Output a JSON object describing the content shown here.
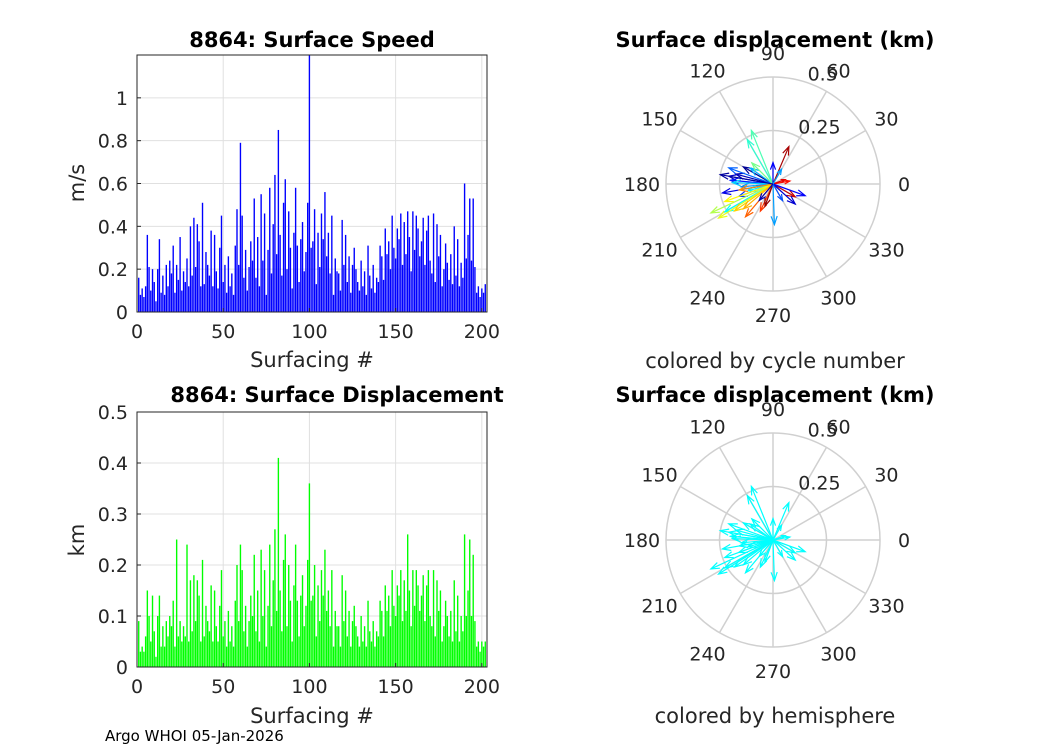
{
  "footer": "Argo WHOI 05-Jan-2026",
  "chart_data": [
    {
      "id": "speed",
      "type": "bar",
      "title": "8864: Surface Speed",
      "xlabel": "Surfacing #",
      "ylabel": "m/s",
      "xlim": [
        0,
        203
      ],
      "ylim": [
        0,
        1.2
      ],
      "xticks": [
        0,
        50,
        100,
        150,
        200
      ],
      "yticks": [
        0,
        0.2,
        0.4,
        0.6,
        0.8,
        1
      ],
      "ytick_labels": [
        "0",
        "0.2",
        "0.4",
        "0.6",
        "0.8",
        "1"
      ],
      "grid": true,
      "color": "#0000ff",
      "x": [
        1,
        2,
        3,
        4,
        5,
        6,
        7,
        8,
        9,
        10,
        11,
        12,
        13,
        14,
        15,
        16,
        17,
        18,
        19,
        20,
        21,
        22,
        23,
        24,
        25,
        26,
        27,
        28,
        29,
        30,
        31,
        32,
        33,
        34,
        35,
        36,
        37,
        38,
        39,
        40,
        41,
        42,
        43,
        44,
        45,
        46,
        47,
        48,
        49,
        50,
        51,
        52,
        53,
        54,
        55,
        56,
        57,
        58,
        59,
        60,
        61,
        62,
        63,
        64,
        65,
        66,
        67,
        68,
        69,
        70,
        71,
        72,
        73,
        74,
        75,
        76,
        77,
        78,
        79,
        80,
        81,
        82,
        83,
        84,
        85,
        86,
        87,
        88,
        89,
        90,
        91,
        92,
        93,
        94,
        95,
        96,
        97,
        98,
        99,
        100,
        101,
        102,
        103,
        104,
        105,
        106,
        107,
        108,
        109,
        110,
        111,
        112,
        113,
        114,
        115,
        116,
        117,
        118,
        119,
        120,
        121,
        122,
        123,
        124,
        125,
        126,
        127,
        128,
        129,
        130,
        131,
        132,
        133,
        134,
        135,
        136,
        137,
        138,
        139,
        140,
        141,
        142,
        143,
        144,
        145,
        146,
        147,
        148,
        149,
        150,
        151,
        152,
        153,
        154,
        155,
        156,
        157,
        158,
        159,
        160,
        161,
        162,
        163,
        164,
        165,
        166,
        167,
        168,
        169,
        170,
        171,
        172,
        173,
        174,
        175,
        176,
        177,
        178,
        179,
        180,
        181,
        182,
        183,
        184,
        185,
        186,
        187,
        188,
        189,
        190,
        191,
        192,
        193,
        194,
        195,
        196,
        197,
        198,
        199,
        200,
        201,
        202
      ],
      "values": [
        0.16,
        0.08,
        0.11,
        0.07,
        0.12,
        0.36,
        0.21,
        0.1,
        0.2,
        0.14,
        0.05,
        0.2,
        0.34,
        0.09,
        0.17,
        0.08,
        0.22,
        0.12,
        0.24,
        0.18,
        0.31,
        0.09,
        0.22,
        0.15,
        0.35,
        0.1,
        0.19,
        0.14,
        0.25,
        0.12,
        0.4,
        0.17,
        0.44,
        0.21,
        0.41,
        0.33,
        0.12,
        0.51,
        0.13,
        0.28,
        0.22,
        0.17,
        0.38,
        0.12,
        0.36,
        0.19,
        0.11,
        0.3,
        0.45,
        0.14,
        0.22,
        0.09,
        0.26,
        0.12,
        0.18,
        0.08,
        0.31,
        0.48,
        0.22,
        0.79,
        0.45,
        0.16,
        0.29,
        0.1,
        0.21,
        0.33,
        0.24,
        0.53,
        0.16,
        0.35,
        0.12,
        0.55,
        0.24,
        0.46,
        0.08,
        0.29,
        0.58,
        0.18,
        0.41,
        0.64,
        0.27,
        0.85,
        0.36,
        0.17,
        0.51,
        0.62,
        0.2,
        0.47,
        0.3,
        0.11,
        0.37,
        0.58,
        0.31,
        0.14,
        0.34,
        0.42,
        0.19,
        0.28,
        0.51,
        1.2,
        0.3,
        0.33,
        0.48,
        0.13,
        0.37,
        0.21,
        0.46,
        0.34,
        0.56,
        0.26,
        0.37,
        0.18,
        0.45,
        0.08,
        0.25,
        0.19,
        0.18,
        0.1,
        0.43,
        0.22,
        0.36,
        0.14,
        0.26,
        0.09,
        0.22,
        0.3,
        0.2,
        0.14,
        0.1,
        0.24,
        0.12,
        0.19,
        0.08,
        0.31,
        0.17,
        0.11,
        0.22,
        0.09,
        0.16,
        0.14,
        0.31,
        0.26,
        0.15,
        0.39,
        0.27,
        0.33,
        0.2,
        0.45,
        0.3,
        0.25,
        0.39,
        0.34,
        0.46,
        0.22,
        0.42,
        0.27,
        0.47,
        0.35,
        0.19,
        0.47,
        0.29,
        0.45,
        0.39,
        0.26,
        0.33,
        0.44,
        0.22,
        0.38,
        0.45,
        0.24,
        0.18,
        0.46,
        0.14,
        0.41,
        0.26,
        0.36,
        0.12,
        0.2,
        0.32,
        0.23,
        0.15,
        0.27,
        0.13,
        0.4,
        0.17,
        0.34,
        0.12,
        0.23,
        0.16,
        0.6,
        0.25,
        0.36,
        0.53,
        0.24,
        0.53,
        0.21,
        0.09,
        0.12,
        0.07,
        0.11,
        0.09,
        0.13
      ]
    },
    {
      "id": "displacement",
      "type": "bar",
      "title": "8864: Surface Displacement",
      "xlabel": "Surfacing #",
      "ylabel": "km",
      "xlim": [
        0,
        203
      ],
      "ylim": [
        0,
        0.5
      ],
      "xticks": [
        0,
        50,
        100,
        150,
        200
      ],
      "yticks": [
        0,
        0.1,
        0.2,
        0.3,
        0.4,
        0.5
      ],
      "ytick_labels": [
        "0",
        "0.1",
        "0.2",
        "0.3",
        "0.4",
        "0.5"
      ],
      "grid": true,
      "color": "#00ff00",
      "x": [
        1,
        2,
        3,
        4,
        5,
        6,
        7,
        8,
        9,
        10,
        11,
        12,
        13,
        14,
        15,
        16,
        17,
        18,
        19,
        20,
        21,
        22,
        23,
        24,
        25,
        26,
        27,
        28,
        29,
        30,
        31,
        32,
        33,
        34,
        35,
        36,
        37,
        38,
        39,
        40,
        41,
        42,
        43,
        44,
        45,
        46,
        47,
        48,
        49,
        50,
        51,
        52,
        53,
        54,
        55,
        56,
        57,
        58,
        59,
        60,
        61,
        62,
        63,
        64,
        65,
        66,
        67,
        68,
        69,
        70,
        71,
        72,
        73,
        74,
        75,
        76,
        77,
        78,
        79,
        80,
        81,
        82,
        83,
        84,
        85,
        86,
        87,
        88,
        89,
        90,
        91,
        92,
        93,
        94,
        95,
        96,
        97,
        98,
        99,
        100,
        101,
        102,
        103,
        104,
        105,
        106,
        107,
        108,
        109,
        110,
        111,
        112,
        113,
        114,
        115,
        116,
        117,
        118,
        119,
        120,
        121,
        122,
        123,
        124,
        125,
        126,
        127,
        128,
        129,
        130,
        131,
        132,
        133,
        134,
        135,
        136,
        137,
        138,
        139,
        140,
        141,
        142,
        143,
        144,
        145,
        146,
        147,
        148,
        149,
        150,
        151,
        152,
        153,
        154,
        155,
        156,
        157,
        158,
        159,
        160,
        161,
        162,
        163,
        164,
        165,
        166,
        167,
        168,
        169,
        170,
        171,
        172,
        173,
        174,
        175,
        176,
        177,
        178,
        179,
        180,
        181,
        182,
        183,
        184,
        185,
        186,
        187,
        188,
        189,
        190,
        191,
        192,
        193,
        194,
        195,
        196,
        197,
        198,
        199,
        200,
        201,
        202
      ],
      "values": [
        0.09,
        0.03,
        0.04,
        0.03,
        0.06,
        0.15,
        0.1,
        0.05,
        0.14,
        0.07,
        0.02,
        0.1,
        0.14,
        0.04,
        0.08,
        0.04,
        0.09,
        0.06,
        0.1,
        0.08,
        0.13,
        0.04,
        0.25,
        0.06,
        0.09,
        0.05,
        0.08,
        0.06,
        0.24,
        0.05,
        0.17,
        0.07,
        0.18,
        0.09,
        0.17,
        0.14,
        0.05,
        0.21,
        0.06,
        0.12,
        0.09,
        0.07,
        0.16,
        0.05,
        0.15,
        0.08,
        0.05,
        0.12,
        0.19,
        0.06,
        0.09,
        0.04,
        0.11,
        0.05,
        0.08,
        0.04,
        0.13,
        0.2,
        0.09,
        0.24,
        0.19,
        0.07,
        0.12,
        0.04,
        0.09,
        0.14,
        0.1,
        0.22,
        0.07,
        0.15,
        0.05,
        0.23,
        0.1,
        0.19,
        0.04,
        0.12,
        0.24,
        0.08,
        0.17,
        0.27,
        0.11,
        0.41,
        0.15,
        0.07,
        0.21,
        0.26,
        0.08,
        0.2,
        0.13,
        0.05,
        0.16,
        0.24,
        0.13,
        0.06,
        0.14,
        0.18,
        0.08,
        0.12,
        0.21,
        0.36,
        0.13,
        0.14,
        0.2,
        0.06,
        0.16,
        0.09,
        0.19,
        0.14,
        0.23,
        0.11,
        0.15,
        0.08,
        0.19,
        0.04,
        0.11,
        0.08,
        0.08,
        0.04,
        0.18,
        0.09,
        0.15,
        0.06,
        0.11,
        0.04,
        0.09,
        0.12,
        0.08,
        0.06,
        0.04,
        0.1,
        0.05,
        0.08,
        0.04,
        0.13,
        0.07,
        0.05,
        0.09,
        0.04,
        0.07,
        0.06,
        0.13,
        0.11,
        0.06,
        0.16,
        0.11,
        0.14,
        0.08,
        0.19,
        0.12,
        0.1,
        0.16,
        0.14,
        0.19,
        0.09,
        0.17,
        0.11,
        0.26,
        0.15,
        0.08,
        0.19,
        0.12,
        0.19,
        0.16,
        0.11,
        0.14,
        0.18,
        0.09,
        0.16,
        0.19,
        0.1,
        0.08,
        0.19,
        0.06,
        0.17,
        0.11,
        0.15,
        0.05,
        0.08,
        0.13,
        0.1,
        0.06,
        0.11,
        0.05,
        0.17,
        0.07,
        0.14,
        0.05,
        0.1,
        0.07,
        0.26,
        0.1,
        0.15,
        0.25,
        0.1,
        0.22,
        0.09,
        0.04,
        0.05,
        0.03,
        0.05,
        0.04,
        0.05
      ]
    },
    {
      "id": "polar-cycle",
      "type": "compass",
      "title": "Surface displacement (km)",
      "caption": "colored by cycle number",
      "rmax": 0.5,
      "rticks": [
        0.25,
        0.5
      ],
      "rtick_labels": [
        "0.25",
        "0.5"
      ],
      "angle_ticks": [
        0,
        30,
        60,
        90,
        120,
        150,
        180,
        210,
        240,
        270,
        300,
        330
      ],
      "angle_labels": [
        "0",
        "30",
        "60",
        "90",
        "120",
        "150",
        "180",
        "210",
        "240",
        "270",
        "300",
        "330"
      ],
      "colormap": "jet",
      "vectors": [
        {
          "angle": 165,
          "r": 0.18,
          "c": 0.05
        },
        {
          "angle": 170,
          "r": 0.21,
          "c": 0.07
        },
        {
          "angle": 150,
          "r": 0.16,
          "c": 0.02
        },
        {
          "angle": 190,
          "r": 0.24,
          "c": 0.1
        },
        {
          "angle": 175,
          "r": 0.2,
          "c": 0.15
        },
        {
          "angle": 200,
          "r": 0.17,
          "c": 0.18
        },
        {
          "angle": 160,
          "r": 0.22,
          "c": 0.22
        },
        {
          "angle": 185,
          "r": 0.15,
          "c": 0.26
        },
        {
          "angle": 145,
          "r": 0.13,
          "c": 0.3
        },
        {
          "angle": 178,
          "r": 0.19,
          "c": 0.33
        },
        {
          "angle": 195,
          "r": 0.12,
          "c": 0.36
        },
        {
          "angle": 210,
          "r": 0.26,
          "c": 0.38
        },
        {
          "angle": 120,
          "r": 0.24,
          "c": 0.42
        },
        {
          "angle": 112,
          "r": 0.27,
          "c": 0.45
        },
        {
          "angle": 135,
          "r": 0.14,
          "c": 0.49
        },
        {
          "angle": 205,
          "r": 0.32,
          "c": 0.55
        },
        {
          "angle": 212,
          "r": 0.3,
          "c": 0.6
        },
        {
          "angle": 200,
          "r": 0.24,
          "c": 0.63
        },
        {
          "angle": 215,
          "r": 0.22,
          "c": 0.67
        },
        {
          "angle": 220,
          "r": 0.18,
          "c": 0.7
        },
        {
          "angle": 190,
          "r": 0.16,
          "c": 0.74
        },
        {
          "angle": 230,
          "r": 0.2,
          "c": 0.78
        },
        {
          "angle": 245,
          "r": 0.14,
          "c": 0.82
        },
        {
          "angle": 10,
          "r": 0.08,
          "c": 0.86
        },
        {
          "angle": 20,
          "r": 0.06,
          "c": 0.9
        },
        {
          "angle": 67,
          "r": 0.19,
          "c": 0.96
        },
        {
          "angle": 330,
          "r": 0.12,
          "c": 0.93
        },
        {
          "angle": 250,
          "r": 0.11,
          "c": 0.98
        },
        {
          "angle": 340,
          "r": 0.16,
          "c": 0.12
        },
        {
          "angle": 318,
          "r": 0.14,
          "c": 0.08
        },
        {
          "angle": 272,
          "r": 0.19,
          "c": 0.28
        },
        {
          "angle": 300,
          "r": 0.09,
          "c": 0.2
        },
        {
          "angle": 90,
          "r": 0.1,
          "c": 0.12
        },
        {
          "angle": 60,
          "r": 0.08,
          "c": 0.28
        },
        {
          "angle": 230,
          "r": 0.1,
          "c": 0.05
        },
        {
          "angle": 170,
          "r": 0.25,
          "c": 0.03
        }
      ]
    },
    {
      "id": "polar-hemisphere",
      "type": "compass",
      "title": "Surface displacement (km)",
      "caption": "colored by hemisphere",
      "rmax": 0.5,
      "rticks": [
        0.25,
        0.5
      ],
      "rtick_labels": [
        "0.25",
        "0.5"
      ],
      "angle_ticks": [
        0,
        30,
        60,
        90,
        120,
        150,
        180,
        210,
        240,
        270,
        300,
        330
      ],
      "angle_labels": [
        "0",
        "30",
        "60",
        "90",
        "120",
        "150",
        "180",
        "210",
        "240",
        "270",
        "300",
        "330"
      ],
      "color": "#00ffff",
      "vectors": [
        {
          "angle": 165,
          "r": 0.18
        },
        {
          "angle": 170,
          "r": 0.21
        },
        {
          "angle": 150,
          "r": 0.16
        },
        {
          "angle": 190,
          "r": 0.24
        },
        {
          "angle": 175,
          "r": 0.2
        },
        {
          "angle": 200,
          "r": 0.17
        },
        {
          "angle": 160,
          "r": 0.22
        },
        {
          "angle": 185,
          "r": 0.15
        },
        {
          "angle": 145,
          "r": 0.13
        },
        {
          "angle": 178,
          "r": 0.19
        },
        {
          "angle": 195,
          "r": 0.12
        },
        {
          "angle": 210,
          "r": 0.26
        },
        {
          "angle": 120,
          "r": 0.24
        },
        {
          "angle": 112,
          "r": 0.27
        },
        {
          "angle": 135,
          "r": 0.14
        },
        {
          "angle": 205,
          "r": 0.32
        },
        {
          "angle": 212,
          "r": 0.3
        },
        {
          "angle": 200,
          "r": 0.24
        },
        {
          "angle": 215,
          "r": 0.22
        },
        {
          "angle": 220,
          "r": 0.18
        },
        {
          "angle": 190,
          "r": 0.16
        },
        {
          "angle": 230,
          "r": 0.2
        },
        {
          "angle": 245,
          "r": 0.14
        },
        {
          "angle": 10,
          "r": 0.08
        },
        {
          "angle": 20,
          "r": 0.06
        },
        {
          "angle": 67,
          "r": 0.19
        },
        {
          "angle": 330,
          "r": 0.12
        },
        {
          "angle": 250,
          "r": 0.11
        },
        {
          "angle": 340,
          "r": 0.16
        },
        {
          "angle": 318,
          "r": 0.14
        },
        {
          "angle": 272,
          "r": 0.19
        },
        {
          "angle": 300,
          "r": 0.09
        },
        {
          "angle": 90,
          "r": 0.1
        },
        {
          "angle": 60,
          "r": 0.08
        },
        {
          "angle": 230,
          "r": 0.1
        },
        {
          "angle": 170,
          "r": 0.25
        }
      ]
    }
  ]
}
